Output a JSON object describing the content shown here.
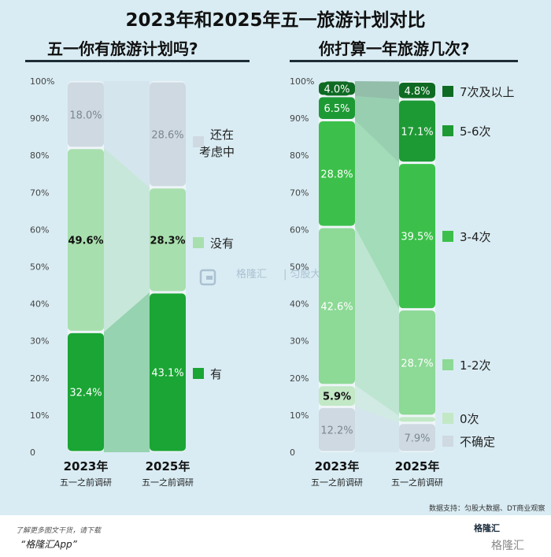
{
  "title": "2023年和2025年五一旅游计划对比",
  "watermarks": [
    "格隆汇",
    "| 匀股大数据"
  ],
  "source": "数据支持：匀股大数据、DT商业观察",
  "footer": {
    "tip": "了解更多图文干货，请下载",
    "app": "“格隆汇App”",
    "brand": "格隆汇",
    "brand_mark": "格隆汇"
  },
  "colors": {
    "panel_bg": "#d9ecf3",
    "green_dark": "#1aa534",
    "green_mid": "#3cc04b",
    "green_pale": "#8dd996",
    "green_light": "#a8dfae",
    "green_soft": "#c2e8c6",
    "grey": "#cfd9e2",
    "darkest": "#0f6b23"
  },
  "chart_data": [
    {
      "type": "stacked-bar",
      "title": "五一你有旅游计划吗?",
      "categories": [
        "2023年",
        "2025年"
      ],
      "category_sub": [
        "五一之前调研",
        "五一之前调研"
      ],
      "yticks": [
        "0",
        "10%",
        "20%",
        "30%",
        "40%",
        "50%",
        "60%",
        "70%",
        "80%",
        "90%",
        "100%"
      ],
      "series": [
        {
          "name": "有",
          "values": [
            32.4,
            43.1
          ],
          "labels": [
            "32.4%",
            "43.1%"
          ],
          "color": "#1aa534",
          "text_color": "#ffffff"
        },
        {
          "name": "没有",
          "values": [
            49.6,
            28.3
          ],
          "labels": [
            "49.6%",
            "28.3%"
          ],
          "color": "#a8dfae",
          "text_color": "#111111"
        },
        {
          "name": "还在考虑中",
          "legend_lines": [
            "还在",
            "考虑中"
          ],
          "values": [
            18.0,
            28.6
          ],
          "labels": [
            "18.0%",
            "28.6%"
          ],
          "color": "#cfd9e2",
          "text_color": "#7a8891"
        }
      ]
    },
    {
      "type": "stacked-bar",
      "title": "你打算一年旅游几次?",
      "categories": [
        "2023年",
        "2025年"
      ],
      "category_sub": [
        "五一之前调研",
        "五一之前调研"
      ],
      "yticks": [
        "0",
        "10%",
        "20%",
        "30%",
        "40%",
        "50%",
        "60%",
        "70%",
        "80%",
        "90%",
        "100%"
      ],
      "series": [
        {
          "name": "不确定",
          "values": [
            12.2,
            7.9
          ],
          "labels": [
            "12.2%",
            "7.9%"
          ],
          "color": "#cfd9e2",
          "text_color": "#7a8891"
        },
        {
          "name": "0次",
          "values": [
            5.9,
            1.9
          ],
          "labels": [
            "5.9%",
            ""
          ],
          "color": "#c2e8c6",
          "text_color": "#111111"
        },
        {
          "name": "1-2次",
          "values": [
            42.6,
            28.7
          ],
          "labels": [
            "42.6%",
            "28.7%"
          ],
          "color": "#8dd996",
          "text_color": "#ffffff"
        },
        {
          "name": "3-4次",
          "values": [
            28.8,
            39.5
          ],
          "labels": [
            "28.8%",
            "39.5%"
          ],
          "color": "#3cc04b",
          "text_color": "#ffffff"
        },
        {
          "name": "5-6次",
          "values": [
            6.5,
            17.1
          ],
          "labels": [
            "6.5%",
            "17.1%"
          ],
          "color": "#1e9a35",
          "text_color": "#ffffff"
        },
        {
          "name": "7次及以上",
          "values": [
            4.0,
            4.8
          ],
          "labels": [
            "4.0%",
            "4.8%"
          ],
          "color": "#0f6b23",
          "text_color": "#ffffff"
        }
      ]
    }
  ]
}
